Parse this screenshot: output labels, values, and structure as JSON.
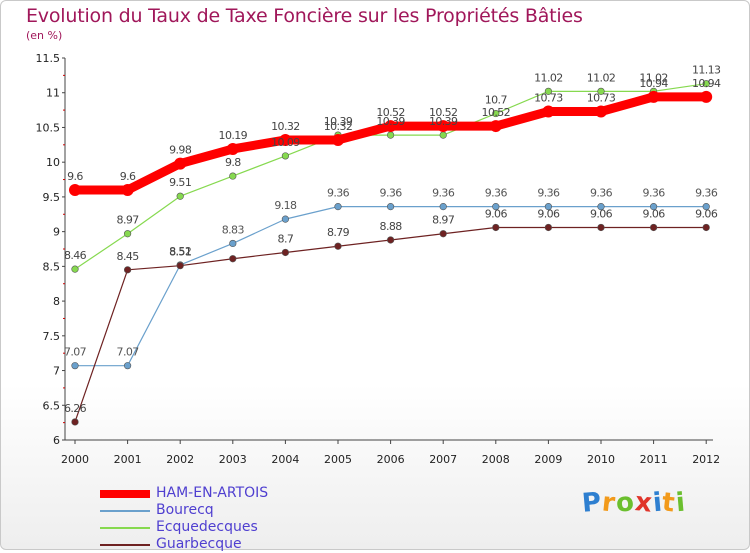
{
  "header": {
    "title": "Evolution du Taux de Taxe Foncière sur les Propriétés Bâties",
    "subtitle": "(en %)"
  },
  "logo": {
    "text": "Proxiti",
    "letters": [
      {
        "ch": "P",
        "color": "#2e7fd0"
      },
      {
        "ch": "r",
        "color": "#f29a1b"
      },
      {
        "ch": "o",
        "color": "#6bbf2e"
      },
      {
        "ch": "x",
        "color": "#e0342a"
      },
      {
        "ch": "i",
        "color": "#2e7fd0"
      },
      {
        "ch": "t",
        "color": "#f29a1b"
      },
      {
        "ch": "i",
        "color": "#6bbf2e"
      }
    ]
  },
  "chart_data": {
    "type": "line",
    "title": "Evolution du Taux de Taxe Foncière sur les Propriétés Bâties",
    "ylabel": "(en %)",
    "xlabel": "",
    "grid": false,
    "ylim": [
      6,
      11.5
    ],
    "yticks": [
      "6",
      "6.5",
      "7",
      "7.5",
      "8",
      "8.5",
      "9",
      "9.5",
      "10",
      "10.5",
      "11",
      "11.5"
    ],
    "categories": [
      "2000",
      "2001",
      "2002",
      "2003",
      "2004",
      "2005",
      "2006",
      "2007",
      "2008",
      "2009",
      "2010",
      "2011",
      "2012"
    ],
    "legend_position": "bottom-left",
    "series": [
      {
        "name": "HAM-EN-ARTOIS",
        "color": "#ff0000",
        "bold": true,
        "values": [
          9.6,
          9.6,
          9.98,
          10.19,
          10.32,
          10.32,
          10.52,
          10.52,
          10.52,
          10.73,
          10.73,
          10.94,
          10.94
        ],
        "labels": [
          "9.6",
          "9.6",
          "9.98",
          "10.19",
          "10.32",
          "10.32",
          "10.52",
          "10.52",
          "10.52",
          "10.73",
          "10.73",
          "10.94",
          "10.94"
        ]
      },
      {
        "name": "Bourecq",
        "color": "#6aa0cc",
        "bold": false,
        "values": [
          7.07,
          7.07,
          8.52,
          8.83,
          9.18,
          9.36,
          9.36,
          9.36,
          9.36,
          9.36,
          9.36,
          9.36,
          9.36
        ],
        "labels": [
          "7.07",
          "7.07",
          "8.52",
          "8.83",
          "9.18",
          "9.36",
          "9.36",
          "9.36",
          "9.36",
          "9.36",
          "9.36",
          "9.36",
          "9.36"
        ]
      },
      {
        "name": "Ecquedecques",
        "color": "#86d94f",
        "bold": false,
        "values": [
          8.46,
          8.97,
          9.51,
          9.8,
          10.09,
          10.39,
          10.39,
          10.39,
          10.7,
          11.02,
          11.02,
          11.02,
          11.13
        ],
        "labels": [
          "8.46",
          "8.97",
          "9.51",
          "9.8",
          "10.09",
          "10.39",
          "10.39",
          "10.39",
          "10.7",
          "11.02",
          "11.02",
          "11.02",
          "11.13"
        ]
      },
      {
        "name": "Guarbecque",
        "color": "#6e2222",
        "bold": false,
        "values": [
          6.26,
          8.45,
          8.51,
          8.61,
          8.7,
          8.79,
          8.88,
          8.97,
          9.06,
          9.06,
          9.06,
          9.06,
          9.06
        ],
        "labels": [
          "6.26",
          "8.45",
          "8.51",
          "",
          "8.7",
          "8.79",
          "8.88",
          "8.97",
          "9.06",
          "9.06",
          "9.06",
          "9.06",
          "9.06"
        ]
      }
    ]
  }
}
